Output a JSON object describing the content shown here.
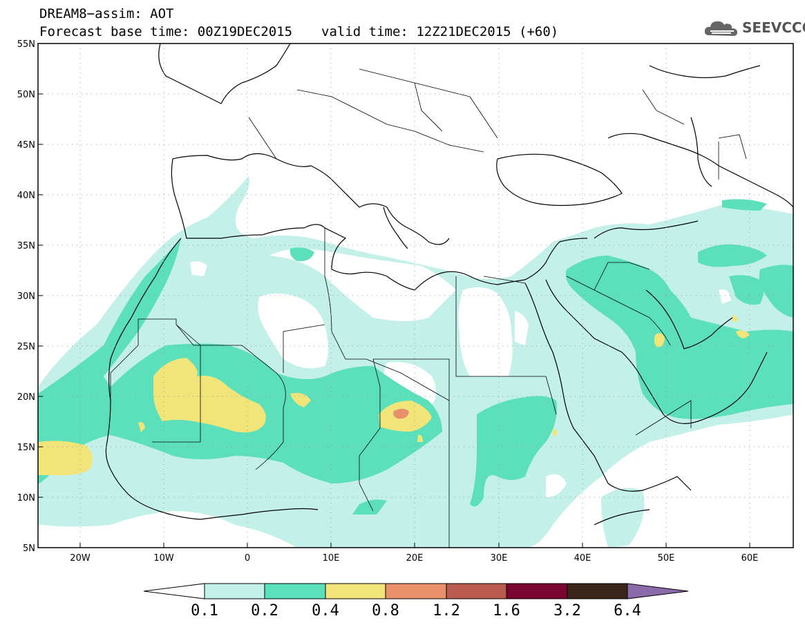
{
  "header": {
    "title_line1": "DREAM8−assim: AOT",
    "base_time": "Forecast base time: 00Z19DEC2015",
    "valid_time": "valid time: 12Z21DEC2015 (+60)"
  },
  "logo": {
    "text": "SEEVCCC",
    "icon": "cloud-icon"
  },
  "map": {
    "lon_range": [
      -25,
      65
    ],
    "lat_range": [
      5,
      55
    ],
    "lat_ticks": [
      "55N",
      "50N",
      "45N",
      "40N",
      "35N",
      "30N",
      "25N",
      "20N",
      "15N",
      "10N",
      "5N"
    ],
    "lon_ticks": [
      "20W",
      "10W",
      "0",
      "10E",
      "20E",
      "30E",
      "40E",
      "50E",
      "60E"
    ],
    "grid": "dotted"
  },
  "colorbar": {
    "labels": [
      "0.1",
      "0.2",
      "0.4",
      "0.8",
      "1.2",
      "1.6",
      "3.2",
      "6.4"
    ],
    "colors": [
      "#c4f0ea",
      "#5ce0bb",
      "#f1e57a",
      "#e8906a",
      "#b85a4e",
      "#7a0630",
      "#3b2418",
      "#8a6aa8"
    ]
  },
  "colors": {
    "class_0_1": "#c4f0ea",
    "class_0_2": "#5ce0bb",
    "class_0_4": "#f1e57a",
    "class_0_8": "#e8906a"
  }
}
